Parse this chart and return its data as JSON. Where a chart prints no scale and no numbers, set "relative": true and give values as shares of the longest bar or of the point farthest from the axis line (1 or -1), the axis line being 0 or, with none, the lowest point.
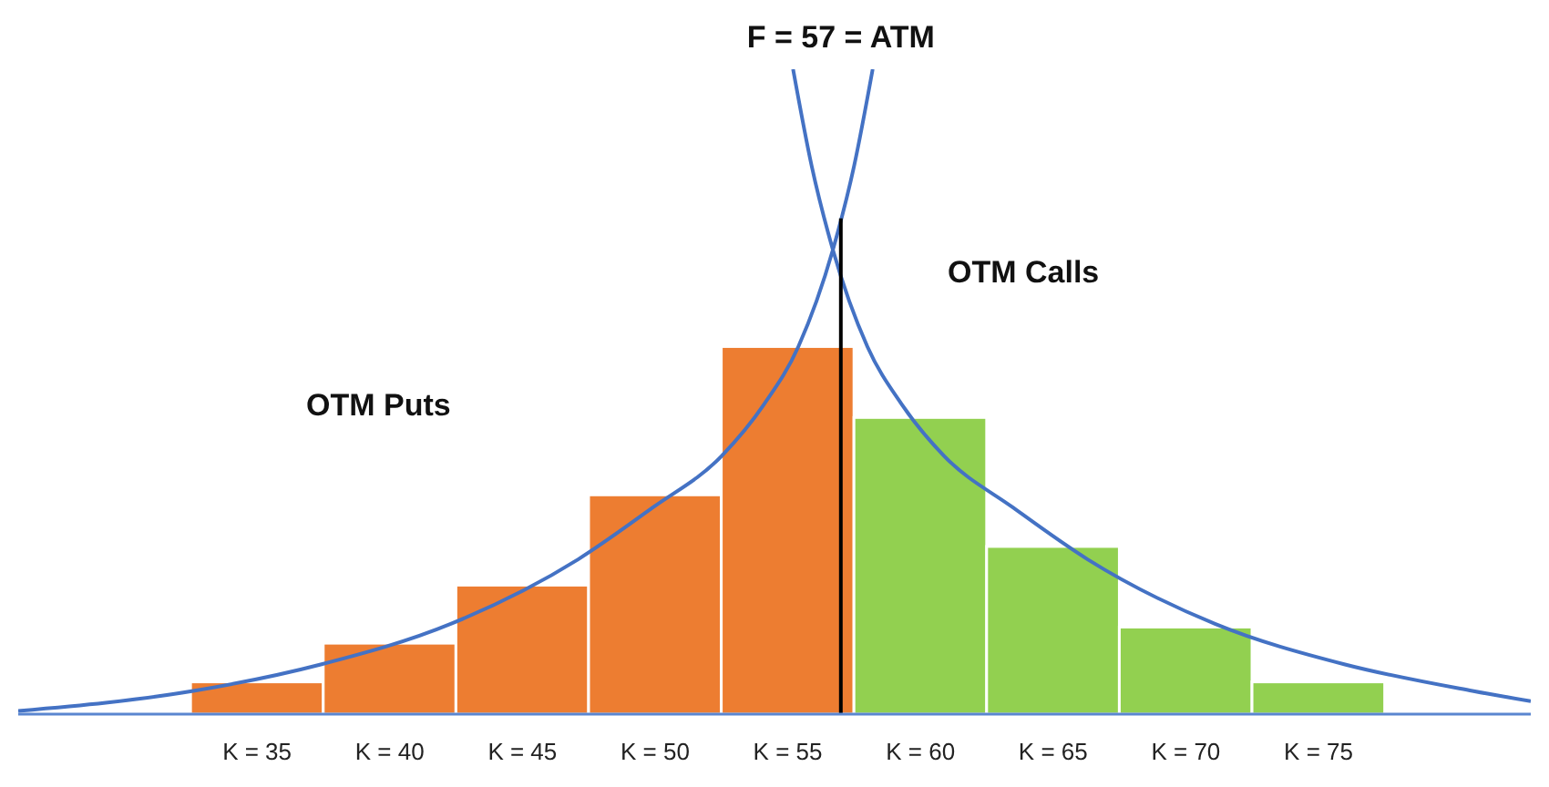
{
  "chart_data": {
    "type": "bar",
    "relative": true,
    "x": [
      35,
      40,
      45,
      50,
      55,
      60,
      65,
      70,
      75
    ],
    "xlim": [
      26,
      83
    ],
    "xticks": [
      {
        "value": 35,
        "label": "K = 35"
      },
      {
        "value": 40,
        "label": "K = 40"
      },
      {
        "value": 45,
        "label": "K = 45"
      },
      {
        "value": 50,
        "label": "K = 50"
      },
      {
        "value": 55,
        "label": "K = 55"
      },
      {
        "value": 60,
        "label": "K = 60"
      },
      {
        "value": 65,
        "label": "K = 65"
      },
      {
        "value": 70,
        "label": "K = 70"
      },
      {
        "value": 75,
        "label": "K = 75"
      }
    ],
    "values": [
      0.05,
      0.11,
      0.2,
      0.34,
      0.57,
      0.46,
      0.26,
      0.135,
      0.05
    ],
    "colors": [
      "#ed7d31",
      "#ed7d31",
      "#ed7d31",
      "#ed7d31",
      "#ed7d31",
      "#92d050",
      "#92d050",
      "#92d050",
      "#92d050"
    ],
    "series": [
      {
        "type": "line",
        "color": "#4472c4",
        "x": [
          26,
          32.6,
          37.4,
          42.3,
          47.1,
          49.9,
          52.5,
          54.1,
          55.4,
          56.7,
          57.5,
          58.2
        ],
        "values": [
          0.005,
          0.036,
          0.077,
          0.14,
          0.24,
          0.32,
          0.4,
          0.48,
          0.57,
          0.72,
          0.85,
          1.0
        ]
      },
      {
        "type": "line",
        "color": "#4472c4",
        "x": [
          55.2,
          55.9,
          56.7,
          58.0,
          59.3,
          60.9,
          63.5,
          66.3,
          71.1,
          76.0,
          80.8,
          83
        ],
        "values": [
          1.0,
          0.85,
          0.72,
          0.57,
          0.48,
          0.4,
          0.32,
          0.24,
          0.14,
          0.077,
          0.036,
          0.02
        ]
      }
    ],
    "ref_lines": [
      {
        "axis": "x",
        "value": 57,
        "label": "F = 57 = ATM",
        "color": "#000000"
      }
    ],
    "annotations": [
      "OTM Puts",
      "OTM Calls"
    ],
    "marker": "none",
    "grid": false,
    "legend": false
  }
}
